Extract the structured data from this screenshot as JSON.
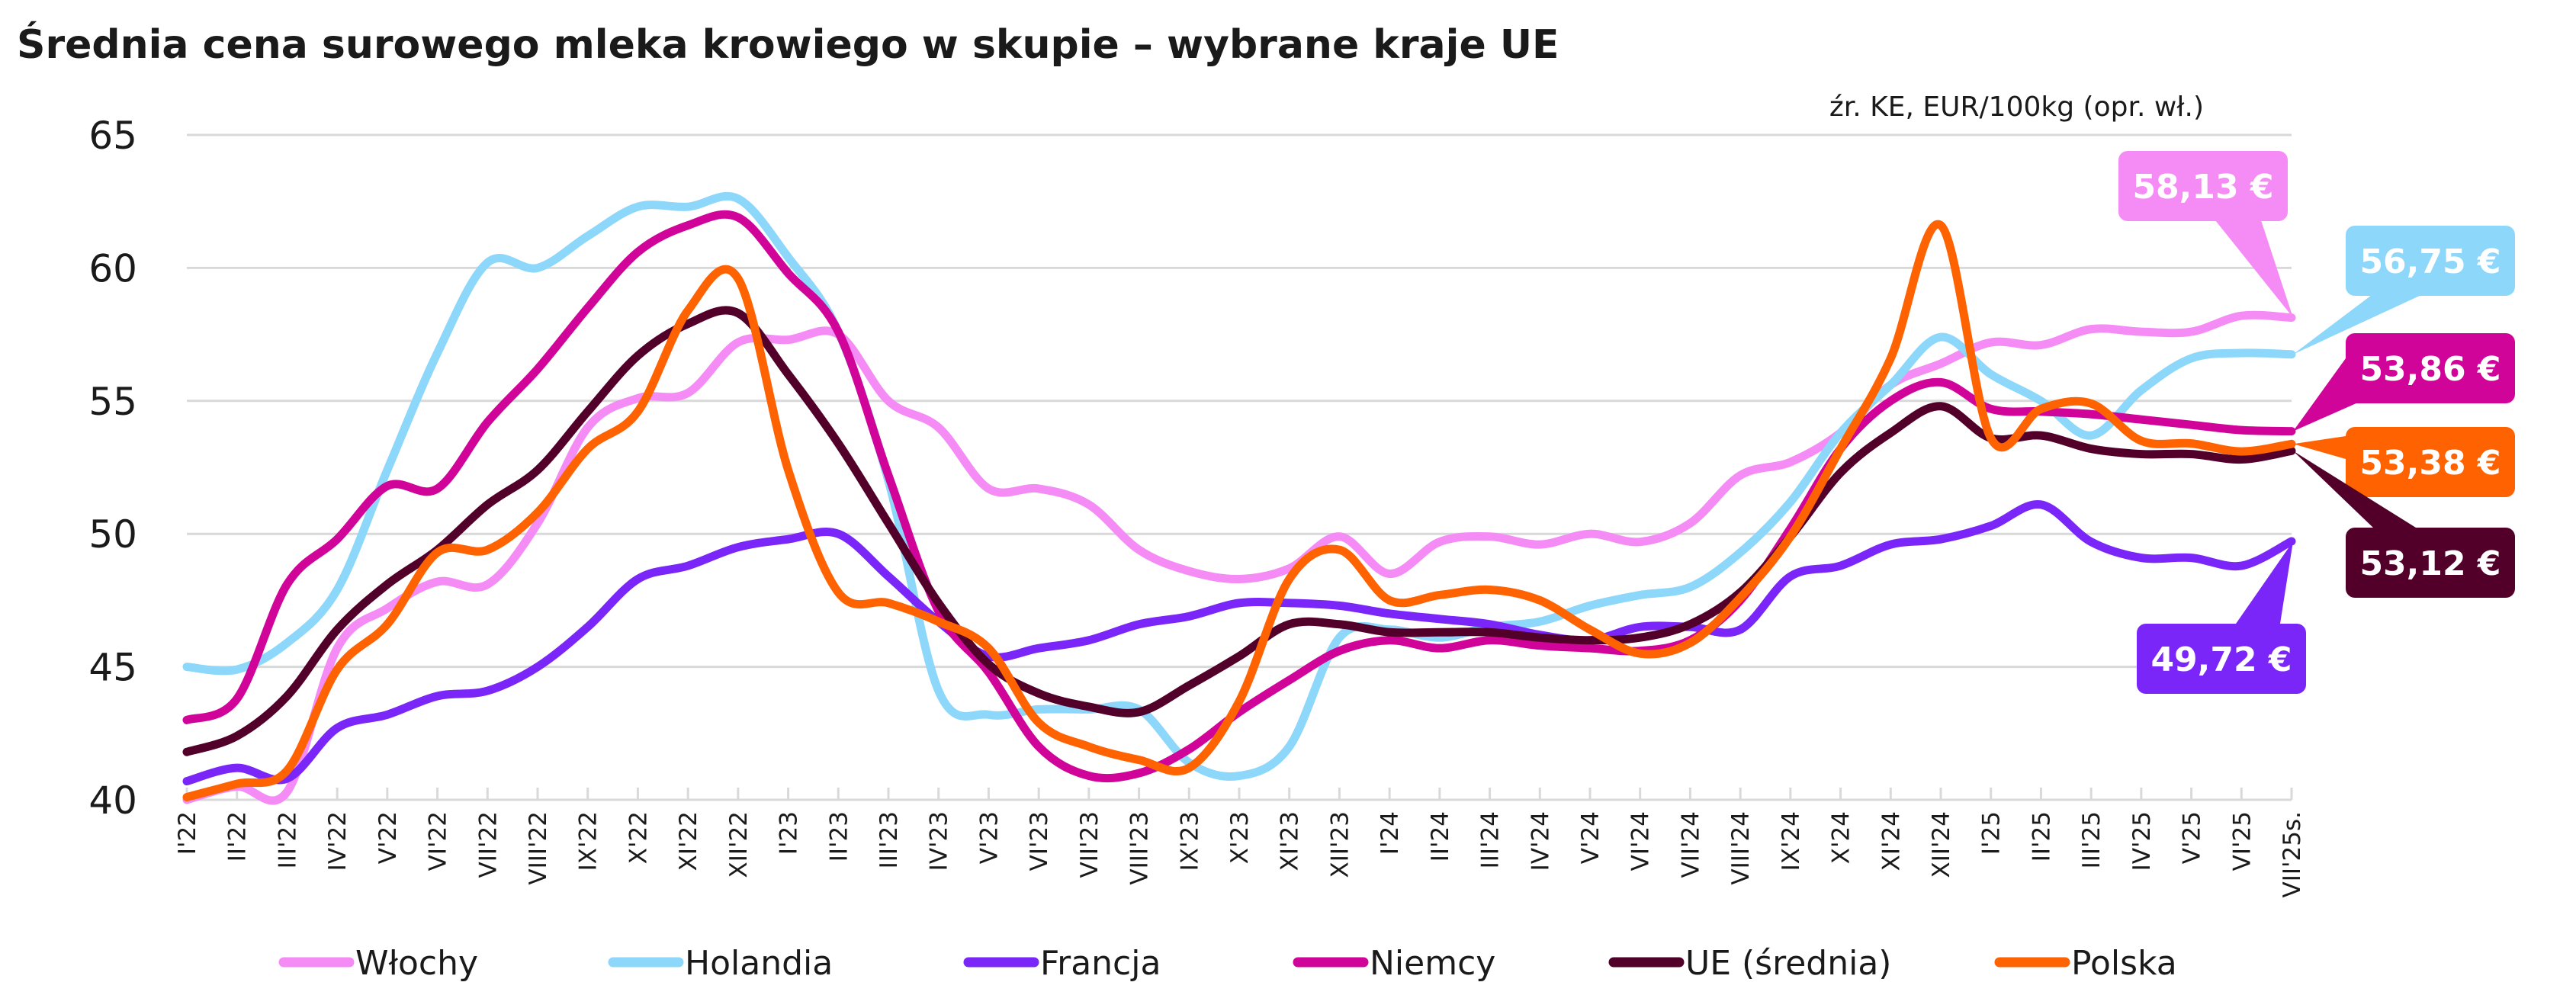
{
  "chart_data": {
    "type": "line",
    "title": "Średnia cena surowego mleka krowiego w skupie – wybrane kraje UE",
    "subtitle": "źr. KE, EUR/100kg (opr. wł.)",
    "xlabel": "",
    "ylabel": "",
    "ylim": [
      40,
      65
    ],
    "yticks": [
      "40",
      "45",
      "50",
      "55",
      "60",
      "65"
    ],
    "grid": true,
    "legend_position": "bottom",
    "categories": [
      "I'22",
      "II'22",
      "III'22",
      "IV'22",
      "V'22",
      "VI'22",
      "VII'22",
      "VIII'22",
      "IX'22",
      "X'22",
      "XI'22",
      "XII'22",
      "I'23",
      "II'23",
      "III'23",
      "IV'23",
      "V'23",
      "VI'23",
      "VII'23",
      "VIII'23",
      "IX'23",
      "X'23",
      "XI'23",
      "XII'23",
      "I'24",
      "II'24",
      "III'24",
      "IV'24",
      "V'24",
      "VI'24",
      "VII'24",
      "VIII'24",
      "IX'24",
      "X'24",
      "XI'24",
      "XII'24",
      "I'25",
      "II'25",
      "III'25",
      "IV'25",
      "V'25",
      "VI'25",
      "VII'25s."
    ],
    "series": [
      {
        "name": "Włochy",
        "color": "#f58cf5",
        "last_label": "58,13 €",
        "values": [
          40.0,
          40.5,
          40.3,
          45.7,
          47.2,
          48.2,
          48.1,
          50.4,
          54.0,
          55.1,
          55.3,
          57.2,
          57.3,
          57.5,
          55.0,
          54.0,
          51.7,
          51.7,
          51.1,
          49.4,
          48.6,
          48.3,
          48.7,
          49.9,
          48.5,
          49.7,
          49.9,
          49.6,
          50.0,
          49.7,
          50.4,
          52.2,
          52.7,
          53.8,
          55.6,
          56.4,
          57.2,
          57.1,
          57.7,
          57.6,
          57.6,
          58.2,
          58.13
        ]
      },
      {
        "name": "Holandia",
        "color": "#8cd7fa",
        "last_label": "56,75 €",
        "values": [
          45.0,
          44.9,
          45.9,
          47.9,
          52.4,
          56.8,
          60.2,
          60.0,
          61.2,
          62.3,
          62.3,
          62.6,
          60.4,
          57.6,
          52.0,
          44.1,
          43.2,
          43.4,
          43.4,
          43.4,
          41.4,
          40.9,
          42.0,
          46.1,
          46.4,
          46.1,
          46.5,
          46.7,
          47.3,
          47.7,
          48.0,
          49.3,
          51.2,
          53.8,
          55.6,
          57.4,
          56.0,
          55.0,
          53.7,
          55.4,
          56.6,
          56.8,
          56.75
        ]
      },
      {
        "name": "Francja",
        "color": "#7b26f8",
        "last_label": "49,72 €",
        "values": [
          40.7,
          41.2,
          40.8,
          42.7,
          43.2,
          43.9,
          44.1,
          45.0,
          46.5,
          48.3,
          48.8,
          49.5,
          49.8,
          50.0,
          48.4,
          46.7,
          45.4,
          45.7,
          46.0,
          46.6,
          46.9,
          47.4,
          47.4,
          47.3,
          47.0,
          46.8,
          46.6,
          46.2,
          46.0,
          46.5,
          46.5,
          46.4,
          48.4,
          48.8,
          49.6,
          49.8,
          50.3,
          51.1,
          49.7,
          49.1,
          49.1,
          48.8,
          49.72
        ]
      },
      {
        "name": "Niemcy",
        "color": "#d1049a",
        "last_label": "53,86 €",
        "values": [
          43.0,
          43.8,
          48.1,
          49.8,
          51.8,
          51.7,
          54.2,
          56.2,
          58.5,
          60.6,
          61.6,
          61.9,
          59.8,
          57.6,
          52.2,
          47.1,
          44.8,
          42.0,
          40.9,
          41.0,
          41.9,
          43.3,
          44.5,
          45.6,
          46.0,
          45.7,
          46.0,
          45.8,
          45.7,
          45.6,
          46.0,
          47.5,
          50.2,
          53.2,
          55.0,
          55.7,
          54.7,
          54.6,
          54.5,
          54.3,
          54.1,
          53.9,
          53.86
        ]
      },
      {
        "name": "UE (średnia)",
        "color": "#52002a",
        "last_label": "53,12 €",
        "values": [
          41.8,
          42.4,
          43.9,
          46.4,
          48.1,
          49.4,
          51.1,
          52.4,
          54.6,
          56.7,
          57.9,
          58.3,
          56.0,
          53.4,
          50.4,
          47.4,
          45.1,
          44.0,
          43.5,
          43.3,
          44.3,
          45.4,
          46.6,
          46.6,
          46.3,
          46.3,
          46.3,
          46.1,
          46.0,
          46.1,
          46.6,
          47.8,
          49.9,
          52.3,
          53.8,
          54.8,
          53.6,
          53.7,
          53.2,
          53.0,
          53.0,
          52.8,
          53.12
        ]
      },
      {
        "name": "Polska",
        "color": "#ff6200",
        "last_label": "53,38 €",
        "values": [
          40.1,
          40.6,
          41.1,
          44.9,
          46.6,
          49.3,
          49.4,
          50.8,
          53.2,
          54.6,
          58.4,
          59.6,
          52.4,
          47.8,
          47.4,
          46.7,
          45.7,
          42.9,
          42.0,
          41.5,
          41.2,
          43.7,
          48.3,
          49.4,
          47.5,
          47.7,
          47.9,
          47.5,
          46.4,
          45.5,
          45.9,
          47.6,
          49.9,
          53.2,
          56.6,
          61.6,
          53.6,
          54.7,
          54.9,
          53.5,
          53.4,
          53.1,
          53.38
        ]
      }
    ]
  }
}
